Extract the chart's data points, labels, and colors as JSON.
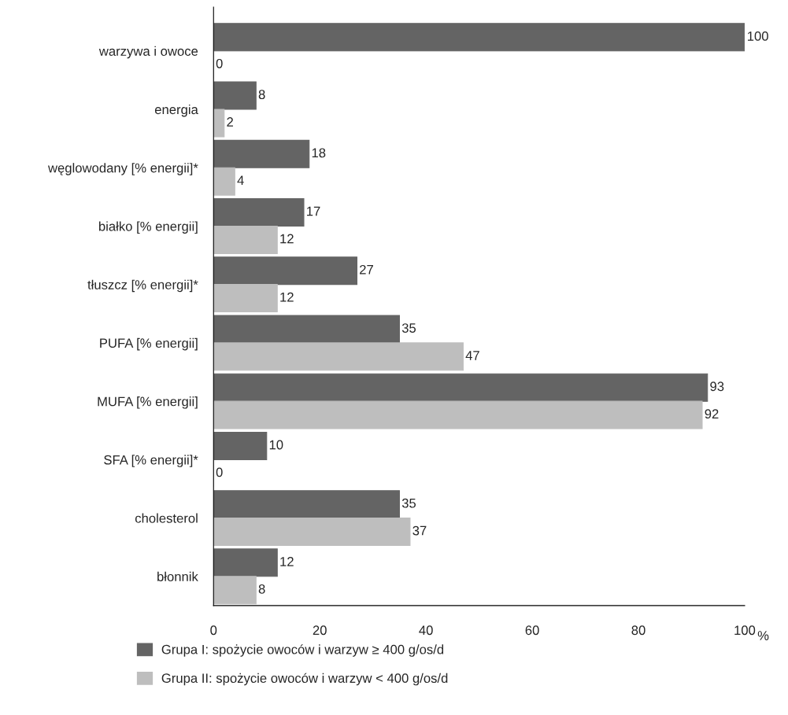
{
  "chart_data": {
    "type": "bar",
    "orientation": "horizontal",
    "xlabel": "%",
    "categories": [
      "warzywa i owoce",
      "energia",
      "węglowodany [% energii]*",
      "białko [% energii]",
      "tłuszcz [% energii]*",
      "PUFA [% energii]",
      "MUFA [% energii]",
      "SFA [% energii]*",
      "cholesterol",
      "błonnik"
    ],
    "series": [
      {
        "name": "Grupa I: spożycie owoców i warzyw ≥ 400 g/os/d",
        "color": "#646464",
        "values": [
          100,
          8,
          18,
          17,
          27,
          35,
          93,
          10,
          35,
          12
        ]
      },
      {
        "name": "Grupa II: spożycie owoców i warzyw < 400 g/os/d",
        "color": "#bebebe",
        "values": [
          0,
          2,
          4,
          12,
          12,
          47,
          92,
          0,
          37,
          8
        ]
      }
    ],
    "xlim": [
      0,
      100
    ],
    "xticks": [
      0,
      20,
      40,
      60,
      80,
      100
    ],
    "data_labels": true,
    "grid": false,
    "legend": "bottom"
  }
}
